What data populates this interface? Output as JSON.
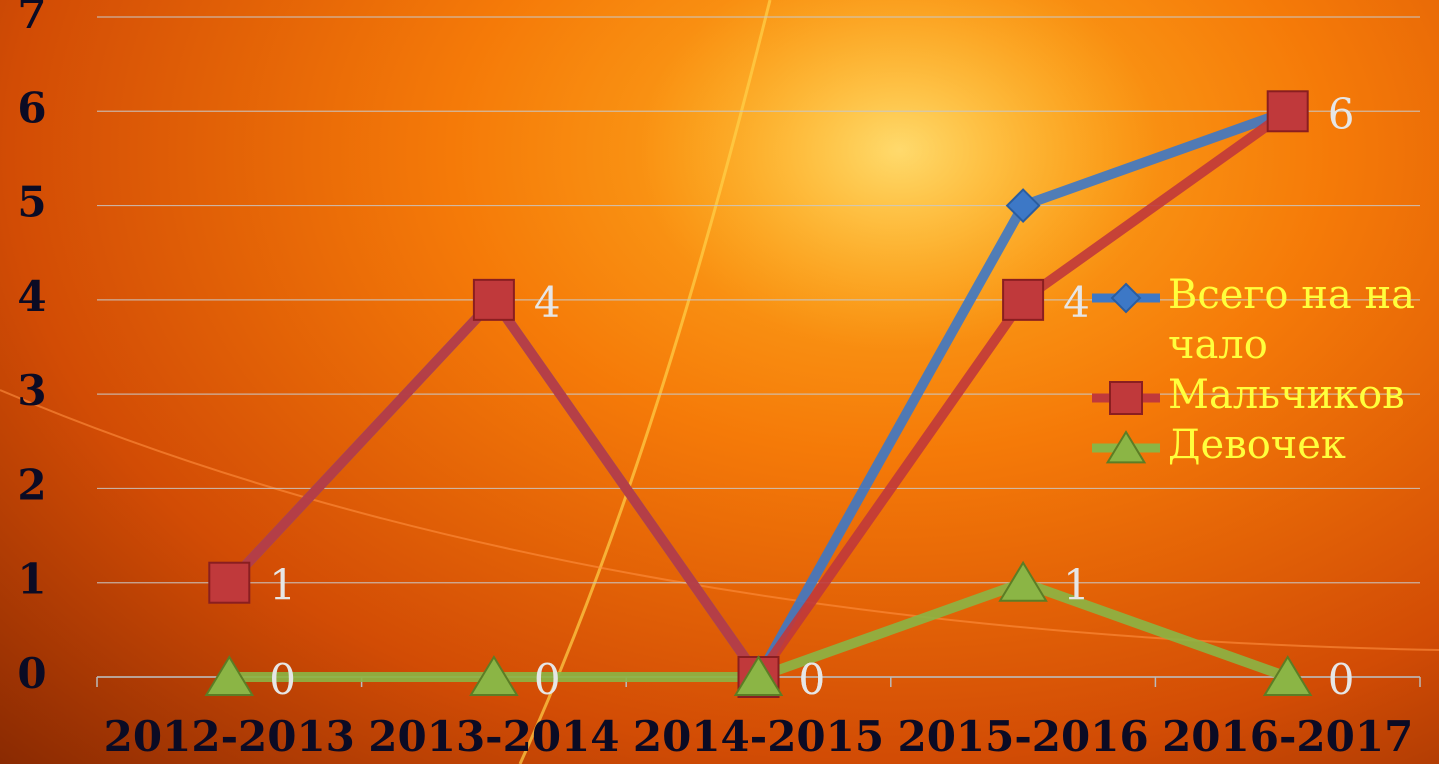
{
  "chart_data": {
    "type": "line",
    "categories": [
      "2012-2013",
      "2013-2014",
      "2014-2015",
      "2015-2016",
      "2016-2017"
    ],
    "series": [
      {
        "name": "Всего на начало",
        "color": "#3d78c6",
        "marker": "diamond",
        "data_labels": false,
        "values": [
          1,
          4,
          0,
          5,
          6
        ]
      },
      {
        "name": "Мальчиков",
        "color": "#c0393b",
        "marker": "square",
        "data_labels": true,
        "values": [
          1,
          4,
          0,
          4,
          6
        ]
      },
      {
        "name": "Девочек",
        "color": "#8bb545",
        "marker": "triangle",
        "data_labels": true,
        "values": [
          0,
          0,
          0,
          1,
          0
        ]
      }
    ],
    "ylim": [
      0,
      7
    ],
    "yticks": [
      0,
      1,
      2,
      3,
      4,
      5,
      6,
      7
    ],
    "grid": true,
    "legend": "right"
  }
}
